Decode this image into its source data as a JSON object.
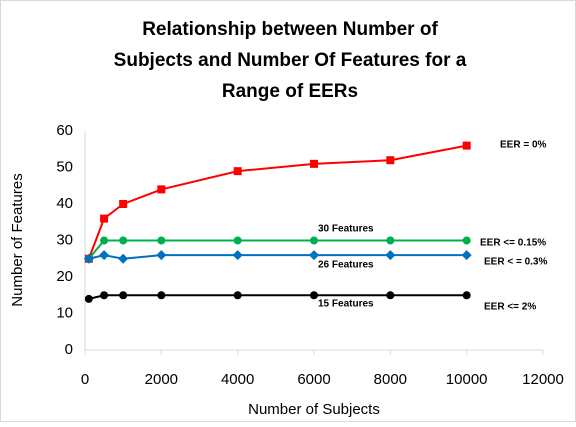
{
  "chart_data": {
    "type": "line",
    "title": [
      "Relationship between Number of",
      "Subjects and Number Of Features for a",
      "Range of EERs"
    ],
    "x_label": "Number of Subjects",
    "y_label": "Number of Features",
    "x": [
      100,
      500,
      1000,
      2000,
      4000,
      6000,
      8000,
      10000
    ],
    "series": [
      {
        "name": "EER = 0%",
        "color": "#ff0000",
        "marker": "square",
        "values": [
          25,
          36,
          40,
          44,
          49,
          51,
          52,
          56
        ]
      },
      {
        "name": "EER <= 0.15%",
        "color": "#00b050",
        "marker": "circle",
        "values": [
          25,
          30,
          30,
          30,
          30,
          30,
          30,
          30
        ]
      },
      {
        "name": "EER < = 0.3%",
        "color": "#0070c0",
        "marker": "diamond",
        "values": [
          25,
          26,
          25,
          26,
          26,
          26,
          26,
          26
        ]
      },
      {
        "name": "EER <= 2%",
        "color": "#000000",
        "marker": "circle",
        "values": [
          14,
          15,
          15,
          15,
          15,
          15,
          15,
          15
        ]
      }
    ],
    "annotations": [
      "30 Features",
      "26 Features",
      "15 Features"
    ],
    "xlim": [
      0,
      12000
    ],
    "xticks": [
      0,
      2000,
      4000,
      6000,
      8000,
      10000,
      12000
    ],
    "ylim": [
      0,
      60
    ],
    "yticks": [
      0,
      10,
      20,
      30,
      40,
      50,
      60
    ],
    "grid": false
  }
}
